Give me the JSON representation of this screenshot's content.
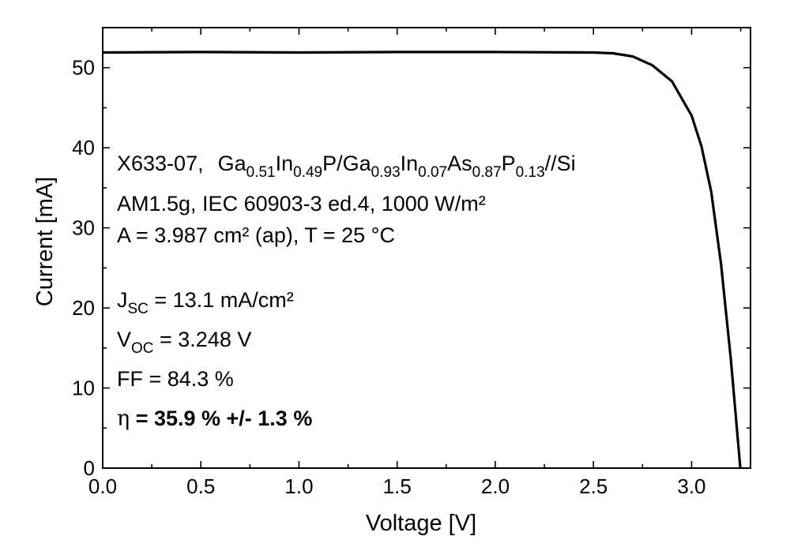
{
  "chart_data": {
    "type": "line",
    "xlabel": "Voltage [V]",
    "ylabel": "Current [mA]",
    "xlim": [
      0.0,
      3.3
    ],
    "ylim": [
      0,
      55
    ],
    "x_ticks": [
      "0.0",
      "0.5",
      "1.0",
      "1.5",
      "2.0",
      "2.5",
      "3.0"
    ],
    "x_tick_values": [
      0.0,
      0.5,
      1.0,
      1.5,
      2.0,
      2.5,
      3.0
    ],
    "y_ticks": [
      "0",
      "10",
      "20",
      "30",
      "40",
      "50"
    ],
    "y_tick_values": [
      0,
      10,
      20,
      30,
      40,
      50
    ],
    "grid": false,
    "color": "#000000",
    "series": [
      {
        "x": [
          0.0,
          0.5,
          1.0,
          1.5,
          2.0,
          2.5,
          2.6,
          2.7,
          2.8,
          2.9,
          3.0,
          3.05,
          3.1,
          3.15,
          3.2,
          3.225,
          3.248
        ],
        "y": [
          51.9,
          51.95,
          51.9,
          51.95,
          51.95,
          51.9,
          51.8,
          51.4,
          50.3,
          48.3,
          44.0,
          40.2,
          34.5,
          25.5,
          13.5,
          6.5,
          0
        ]
      }
    ],
    "annotations": {
      "line1": {
        "sample": "X633-07,",
        "parts": [
          {
            "t": "Ga"
          },
          {
            "t": "0.51",
            "sub": true
          },
          {
            "t": "In"
          },
          {
            "t": "0.49",
            "sub": true
          },
          {
            "t": "P/Ga"
          },
          {
            "t": "0.93",
            "sub": true
          },
          {
            "t": "In"
          },
          {
            "t": "0.07",
            "sub": true
          },
          {
            "t": "As"
          },
          {
            "t": "0.87",
            "sub": true
          },
          {
            "t": "P"
          },
          {
            "t": "0.13",
            "sub": true
          },
          {
            "t": "//Si"
          }
        ]
      },
      "line2": "AM1.5g, IEC 60903-3 ed.4, 1000 W/m²",
      "line3": "A = 3.987 cm² (ap), T = 25 °C",
      "jsc_symbol": "J",
      "jsc_sub": "SC",
      "jsc_value": " = 13.1 mA/cm²",
      "voc_symbol": "V",
      "voc_sub": "OC",
      "voc_value": " = 3.248 V",
      "ff": "FF = 84.3 %",
      "eta_symbol": "η",
      "eta_value": " = 35.9 % +/- 1.3 %"
    }
  }
}
